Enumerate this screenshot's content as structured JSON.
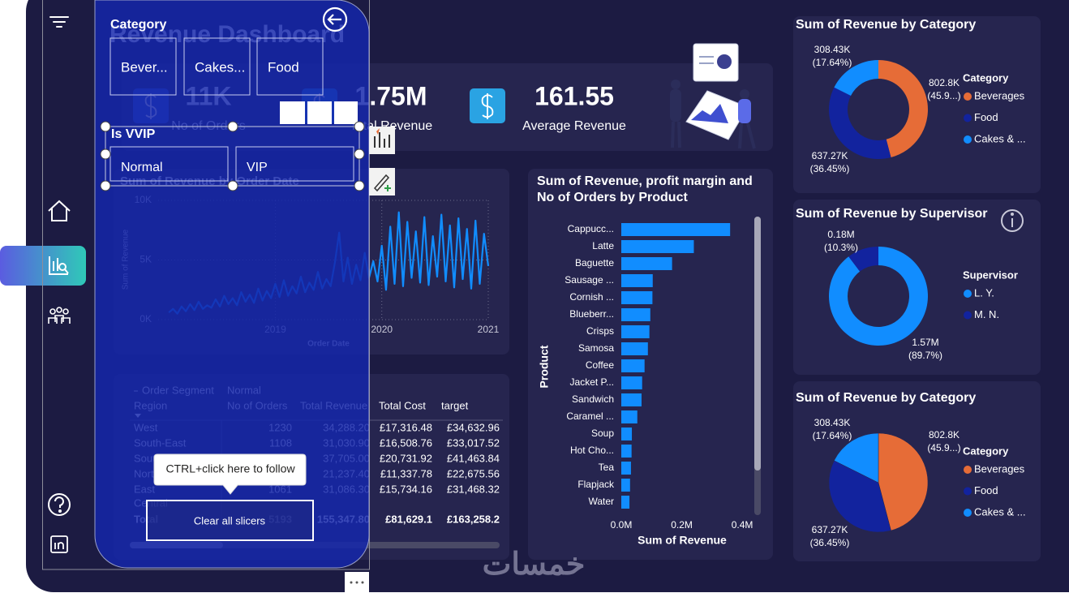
{
  "dashboard": {
    "title": "Revenue Dashboard",
    "watermark": "خمسات"
  },
  "kpis": [
    {
      "value": "11K",
      "label": "No of Orders"
    },
    {
      "value": "1.75M",
      "label": "Total Revenue"
    },
    {
      "value": "161.55",
      "label": "Average Revenue"
    }
  ],
  "slicers": [
    {
      "title": "Category",
      "options": [
        "Bever...",
        "Cakes...",
        "Food"
      ]
    },
    {
      "title": "Is VVIP",
      "options": [
        "Normal",
        "VIP"
      ]
    }
  ],
  "tooltip": "CTRL+click here to follow",
  "clear_button": "Clear all slicers",
  "table": {
    "group_header": [
      "Order Segment",
      "Normal"
    ],
    "columns": [
      "Region",
      "No of Orders",
      "Total Revenue",
      "Total Cost",
      "target"
    ],
    "rows": [
      [
        "West",
        "1230",
        "34,288.20",
        "£17,316.48",
        "£34,632.96"
      ],
      [
        "South-East",
        "1108",
        "31,030.90",
        "£16,508.76",
        "£33,017.52"
      ],
      [
        "South",
        null,
        "37,705.00",
        "£20,731.92",
        "£41,463.84"
      ],
      [
        "North",
        null,
        "21,237.40",
        "£11,337.78",
        "£22,675.56"
      ],
      [
        "East",
        "1061",
        "31,086.30",
        "£15,734.16",
        "£31,468.32"
      ],
      [
        "Central",
        null,
        null,
        null,
        null
      ]
    ],
    "total_row": [
      "Total",
      "5193",
      "155,347.80",
      "£81,629.1",
      "£163,258.2"
    ]
  },
  "chart_data": [
    {
      "type": "line",
      "title": "Sum of Revenue by Order Date",
      "x_label": "Order Date",
      "y_label": "Sum of Revenue",
      "x": [
        2018.0,
        2018.04,
        2018.08,
        2018.12,
        2018.16,
        2018.2,
        2018.24,
        2018.28,
        2018.32,
        2018.36,
        2018.4,
        2018.44,
        2018.48,
        2018.52,
        2018.56,
        2018.6,
        2018.64,
        2018.68,
        2018.72,
        2018.76,
        2018.8,
        2018.84,
        2018.88,
        2018.92,
        2018.96,
        2019.0,
        2019.04,
        2019.08,
        2019.12,
        2019.16,
        2019.2,
        2019.24,
        2019.28,
        2019.32,
        2019.36,
        2019.4,
        2019.44,
        2019.48,
        2019.52,
        2019.56,
        2019.6,
        2019.64,
        2019.68,
        2019.72,
        2019.76,
        2019.8,
        2019.84,
        2019.88,
        2019.92,
        2019.96,
        2020.0,
        2020.04,
        2020.08,
        2020.12,
        2020.16,
        2020.2,
        2020.24,
        2020.28,
        2020.32,
        2020.36,
        2020.4,
        2020.44,
        2020.48,
        2020.52,
        2020.56,
        2020.6,
        2020.64,
        2020.68,
        2020.72,
        2020.76,
        2020.8,
        2020.84,
        2020.88,
        2020.92,
        2020.96,
        2021.0
      ],
      "values": [
        600,
        900,
        500,
        1100,
        700,
        1300,
        800,
        1500,
        900,
        1200,
        1000,
        1700,
        1100,
        2000,
        1300,
        1800,
        1200,
        2300,
        1500,
        2100,
        1400,
        2600,
        1600,
        2400,
        1800,
        3000,
        1900,
        3300,
        2000,
        2800,
        2200,
        3600,
        2300,
        3100,
        2500,
        4000,
        2600,
        3400,
        2800,
        4800,
        7300,
        3200,
        5200,
        3000,
        4600,
        3300,
        5600,
        3500,
        4900,
        3200,
        6200,
        2500,
        7800,
        3000,
        9000,
        2800,
        8200,
        3500,
        7400,
        3100,
        8600,
        2900,
        7000,
        3600,
        8800,
        3200,
        7900,
        2700,
        8500,
        3400,
        7600,
        2600,
        8300,
        3000,
        7200,
        4500
      ],
      "color": "#118dff",
      "xlim": [
        2017.9,
        2021.0
      ],
      "ylim": [
        0,
        10000
      ],
      "xticks": [
        2019,
        2020,
        2021
      ],
      "yticks": [
        {
          "value": 0,
          "label": "0K"
        },
        {
          "value": 5000,
          "label": "5K"
        },
        {
          "value": 10000,
          "label": "10K"
        }
      ],
      "grid": true
    },
    {
      "type": "bar",
      "orientation": "horizontal",
      "title": "Sum of Revenue, profit margin and No of Orders by Product",
      "x_label": "Sum of Revenue",
      "y_label": "Product",
      "categories": [
        "Cappucc...",
        "Latte",
        "Baguette",
        "Sausage ...",
        "Cornish ...",
        "Blueberr...",
        "Crisps",
        "Samosa",
        "Coffee",
        "Jacket P...",
        "Sandwich",
        "Caramel ...",
        "Soup",
        "Hot Cho...",
        "Tea",
        "Flapjack",
        "Water"
      ],
      "values": [
        360000,
        240000,
        168000,
        104000,
        103000,
        96000,
        93000,
        88000,
        77000,
        69000,
        67000,
        53000,
        35000,
        34000,
        32000,
        29000,
        27000
      ],
      "color": "#118dff",
      "xlim": [
        0,
        440000
      ],
      "xticks": [
        {
          "value": 0,
          "label": "0.0M"
        },
        {
          "value": 200000,
          "label": "0.2M"
        },
        {
          "value": 400000,
          "label": "0.4M"
        }
      ]
    },
    {
      "type": "donut",
      "title": "Sum of Revenue by Category",
      "legend_title": "Category",
      "categories": [
        "Beverages",
        "Food",
        "Cakes & ..."
      ],
      "values": [
        802800,
        637270,
        308430
      ],
      "value_labels": [
        "802.8K",
        "637.27K",
        "308.43K"
      ],
      "percent_labels": [
        "(45.9...)",
        "(36.45%)",
        "(17.64%)"
      ],
      "colors": [
        "#e66c37",
        "#12239e",
        "#118dff"
      ]
    },
    {
      "type": "donut",
      "title": "Sum of Revenue by Supervisor",
      "legend_title": "Supervisor",
      "categories": [
        "L. Y.",
        "M. N."
      ],
      "values": [
        1570000,
        180000
      ],
      "value_labels": [
        "1.57M",
        "0.18M"
      ],
      "percent_labels": [
        "(89.7%)",
        "(10.3%)"
      ],
      "colors": [
        "#118dff",
        "#12239e"
      ]
    },
    {
      "type": "pie",
      "title": "Sum of Revenue by Category",
      "legend_title": "Category",
      "categories": [
        "Beverages",
        "Food",
        "Cakes & ..."
      ],
      "values": [
        802800,
        637270,
        308430
      ],
      "value_labels": [
        "802.8K",
        "637.27K",
        "308.43K"
      ],
      "percent_labels": [
        "(45.9...)",
        "(36.45%)",
        "(17.64%)"
      ],
      "colors": [
        "#e66c37",
        "#12239e",
        "#118dff"
      ]
    }
  ]
}
